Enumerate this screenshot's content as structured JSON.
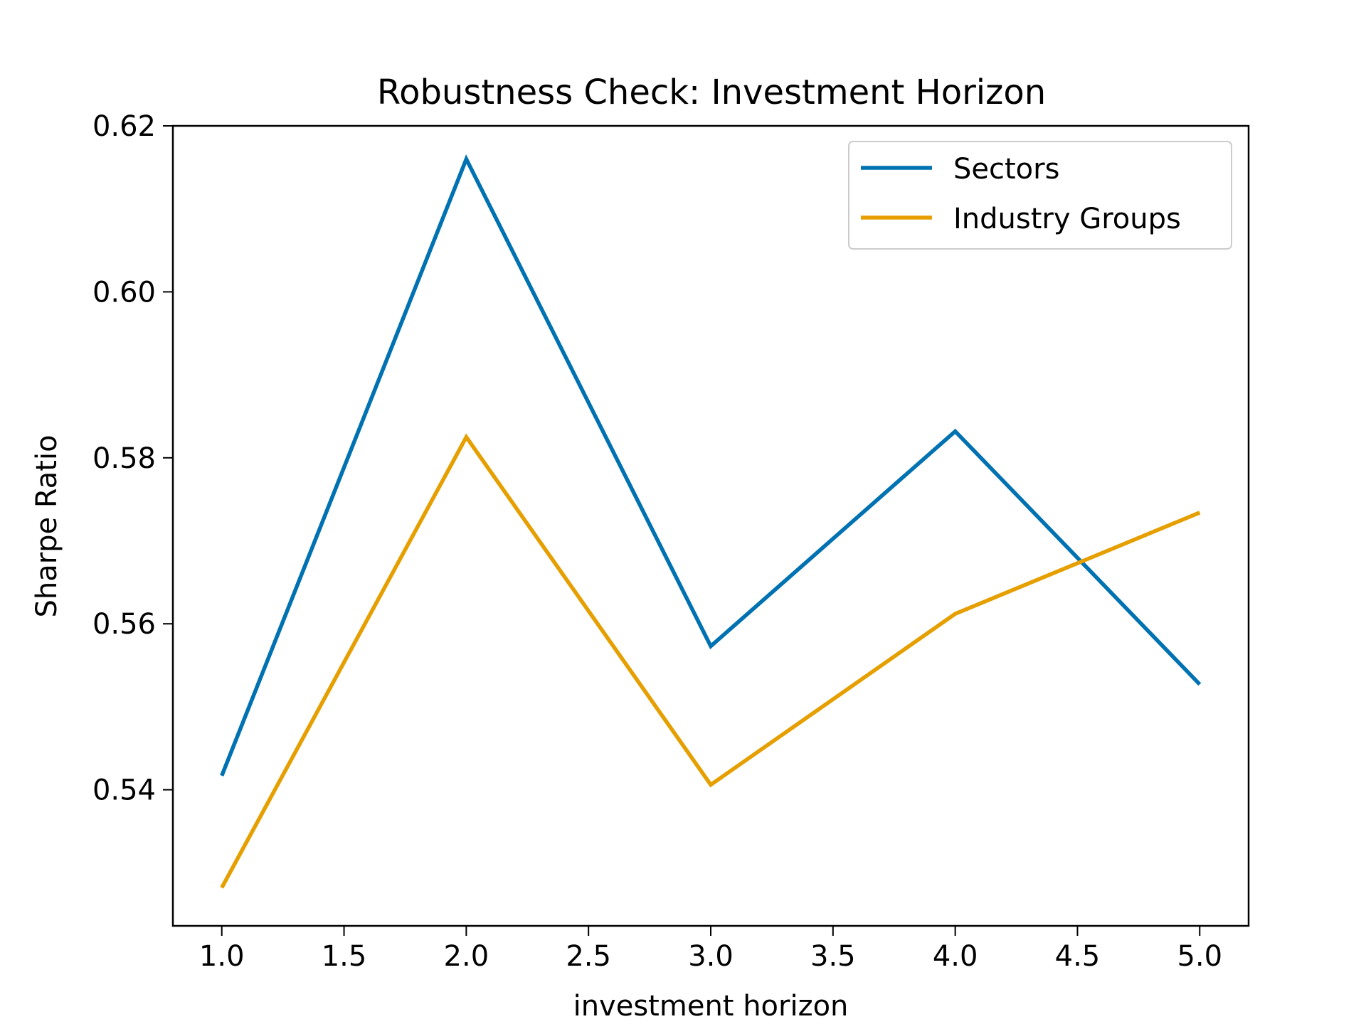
{
  "chart_data": {
    "type": "line",
    "title": "Robustness Check: Investment Horizon",
    "xlabel": "investment horizon",
    "ylabel": "Sharpe Ratio",
    "x": [
      1,
      2,
      3,
      4,
      5
    ],
    "xlim": [
      0.8,
      5.2
    ],
    "ylim": [
      0.5236,
      0.62
    ],
    "xticks": [
      1.0,
      1.5,
      2.0,
      2.5,
      3.0,
      3.5,
      4.0,
      4.5,
      5.0
    ],
    "xtick_labels": [
      "1.0",
      "1.5",
      "2.0",
      "2.5",
      "3.0",
      "3.5",
      "4.0",
      "4.5",
      "5.0"
    ],
    "yticks": [
      0.54,
      0.56,
      0.58,
      0.6,
      0.62
    ],
    "ytick_labels": [
      "0.54",
      "0.56",
      "0.58",
      "0.60",
      "0.62"
    ],
    "grid": false,
    "legend_position": "top-right",
    "series": [
      {
        "name": "Sectors",
        "color": "#0072B2",
        "values": [
          0.5417,
          0.616,
          0.5573,
          0.5832,
          0.5527
        ]
      },
      {
        "name": "Industry Groups",
        "color": "#E69F00",
        "values": [
          0.5282,
          0.5825,
          0.5406,
          0.5612,
          0.5734
        ]
      }
    ]
  }
}
